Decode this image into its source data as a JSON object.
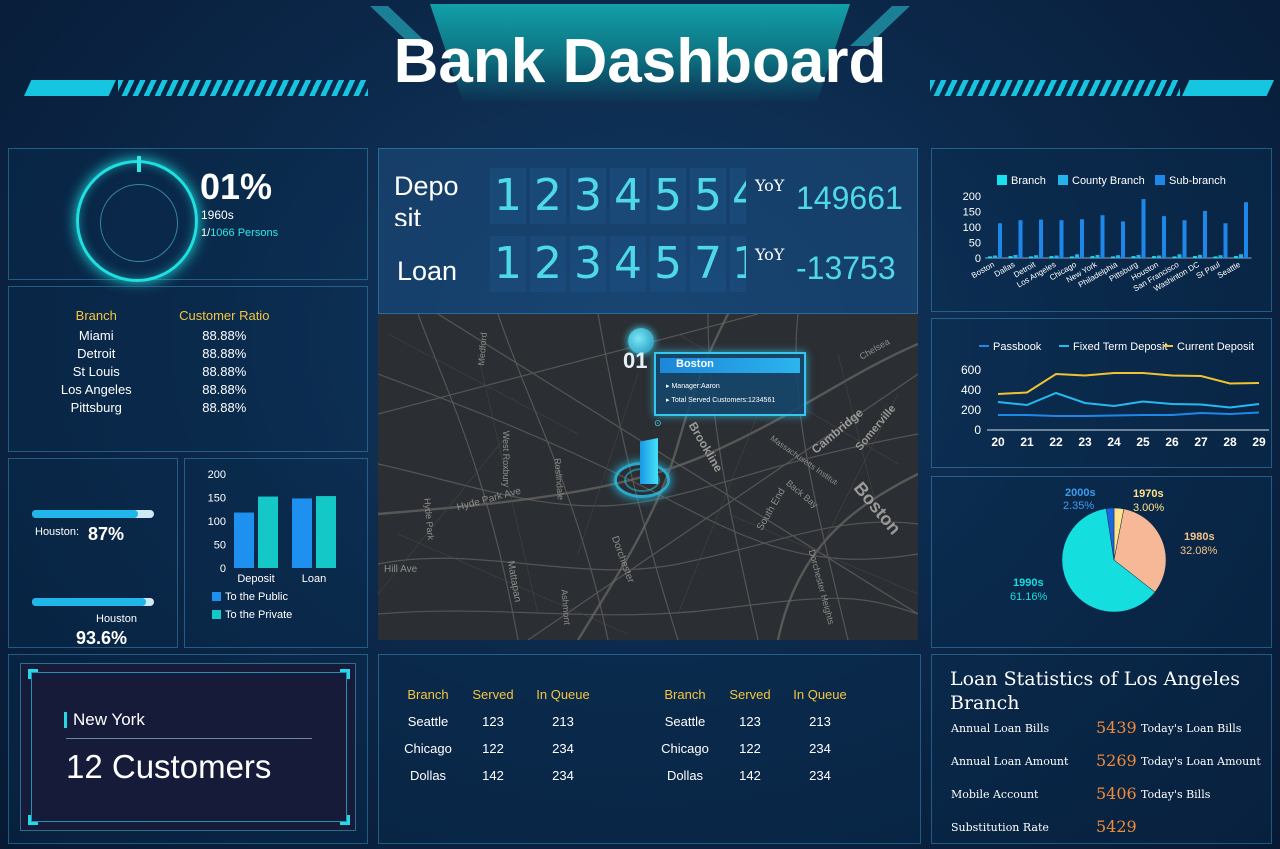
{
  "header": {
    "title": "Bank Dashboard"
  },
  "gauge": {
    "percent": "01%",
    "label": "1960s",
    "persons_prefix": "1/",
    "persons": "1066 Persons"
  },
  "ratio_table": {
    "headers": [
      "Branch",
      "Customer Ratio"
    ],
    "rows": [
      [
        "Miami",
        "88.88%"
      ],
      [
        "Detroit",
        "88.88%"
      ],
      [
        "St Louis",
        "88.88%"
      ],
      [
        "Los Angeles",
        "88.88%"
      ],
      [
        "Pittsburg",
        "88.88%"
      ]
    ]
  },
  "progress": [
    {
      "label": "Houston:",
      "value": "87%",
      "fraction": 0.87
    },
    {
      "label": "Houston",
      "value": "93.6%",
      "fraction": 0.936
    }
  ],
  "deposit_loan": {
    "deposit_label": "Depo\nsit",
    "deposit_digits": [
      "1",
      "2",
      "3",
      "4",
      "5",
      "5",
      "4"
    ],
    "deposit_yoy_label": "YoY",
    "deposit_yoy": "149661",
    "loan_label": "Loan",
    "loan_digits": [
      "1",
      "2",
      "3",
      "4",
      "5",
      "7",
      "1"
    ],
    "loan_yoy_label": "YoY",
    "loan_yoy": "-13753"
  },
  "map": {
    "marker_number": "01",
    "popup_title": "Boston",
    "popup_manager": "Manager:Aaron",
    "popup_served": "Total Served Customers:1234561",
    "labels": [
      "Boston",
      "Brookline",
      "Cambridge",
      "Somerville",
      "Hyde Park Ave",
      "Dorchester",
      "Mattapan",
      "Hyde Park",
      "West Roxbury",
      "South End",
      "Dorchester Heights",
      "Ashmont",
      "Back Bay",
      "Medford",
      "Roslindale",
      "Hill Ave",
      "Chelsea",
      "Massachusetts Institute of Technology"
    ]
  },
  "small_bar": {
    "chart_data": {
      "type": "bar",
      "categories": [
        "Deposit",
        "Loan"
      ],
      "series": [
        {
          "name": "To the Public",
          "values": [
            118,
            148
          ],
          "color": "#1e90f0"
        },
        {
          "name": "To the Private",
          "values": [
            152,
            153
          ],
          "color": "#14c8c8"
        }
      ],
      "yticks": [
        "0",
        "50",
        "100",
        "150",
        "200"
      ],
      "ylim": [
        0,
        200
      ]
    }
  },
  "ny": {
    "city": "New York",
    "customers": "12 Customers"
  },
  "queue_table": {
    "headers": [
      "Branch",
      "Served",
      "In Queue"
    ],
    "rows": [
      [
        "Seattle",
        "123",
        "213"
      ],
      [
        "Chicago",
        "122",
        "234"
      ],
      [
        "Dollas",
        "142",
        "234"
      ]
    ]
  },
  "branch_bar": {
    "chart_data": {
      "type": "bar",
      "categories": [
        "Boston",
        "Dallas",
        "Detroit",
        "Los Angeles",
        "Chicago",
        "New York",
        "Philadelphia",
        "Pittsburg",
        "Houston",
        "San Francisco",
        "Washinton DC",
        "St Paul",
        "Seattle"
      ],
      "series": [
        {
          "name": "Branch",
          "values": [
            5,
            6,
            5,
            6,
            5,
            6,
            5,
            6,
            6,
            5,
            6,
            5,
            6
          ],
          "color": "#18e2ee"
        },
        {
          "name": "County Branch",
          "values": [
            8,
            10,
            9,
            8,
            12,
            10,
            9,
            10,
            8,
            12,
            10,
            9,
            12
          ],
          "color": "#24b4ec"
        },
        {
          "name": "Sub-branch",
          "values": [
            112,
            122,
            124,
            122,
            125,
            138,
            118,
            190,
            135,
            122,
            152,
            112,
            180
          ],
          "color": "#1e88ea"
        }
      ],
      "yticks": [
        "0",
        "50",
        "100",
        "150",
        "200"
      ],
      "ylim": [
        0,
        200
      ]
    }
  },
  "line_chart": {
    "chart_data": {
      "type": "line",
      "x": [
        "20",
        "21",
        "22",
        "23",
        "24",
        "25",
        "26",
        "27",
        "28",
        "29"
      ],
      "series": [
        {
          "name": "Passbook",
          "values": [
            150,
            150,
            140,
            140,
            145,
            150,
            150,
            170,
            160,
            175
          ],
          "color": "#1e88ea"
        },
        {
          "name": "Fixed Term Deposit",
          "values": [
            280,
            250,
            370,
            270,
            240,
            285,
            260,
            255,
            225,
            260
          ],
          "color": "#28b8f0"
        },
        {
          "name": "Current Deposit",
          "values": [
            360,
            375,
            560,
            545,
            570,
            570,
            545,
            540,
            465,
            470
          ],
          "color": "#f2c230"
        }
      ],
      "yticks": [
        "0",
        "200",
        "400",
        "600"
      ],
      "ylim": [
        0,
        700
      ]
    }
  },
  "pie_chart": {
    "chart_data": {
      "type": "pie",
      "slices": [
        {
          "name": "1970s",
          "value": 3.0,
          "pct": "3.00%",
          "color": "#ffe38a",
          "label_color": "#ffe38a"
        },
        {
          "name": "1980s",
          "value": 32.08,
          "pct": "32.08%",
          "color": "#f7b898",
          "label_color": "#f5c38a"
        },
        {
          "name": "1990s",
          "value": 61.16,
          "pct": "61.16%",
          "color": "#14dede",
          "label_color": "#14dede"
        },
        {
          "name": "2000s",
          "value": 2.35,
          "pct": "2.35%",
          "color": "#1e66e0",
          "label_color": "#3c9cf0"
        }
      ]
    }
  },
  "loan_stats": {
    "title": "Loan Statistics of Los Angeles Branch",
    "rows": [
      {
        "label": "Annual Loan Bills",
        "value": "5439",
        "right": "Today's Loan Bills"
      },
      {
        "label": "Annual Loan Amount",
        "value": "5269",
        "right": "Today's Loan Amount"
      },
      {
        "label": "Mobile Account",
        "value": "5406",
        "right": "Today's Bills"
      },
      {
        "label": "Substitution Rate",
        "value": "5429",
        "right": ""
      }
    ]
  }
}
